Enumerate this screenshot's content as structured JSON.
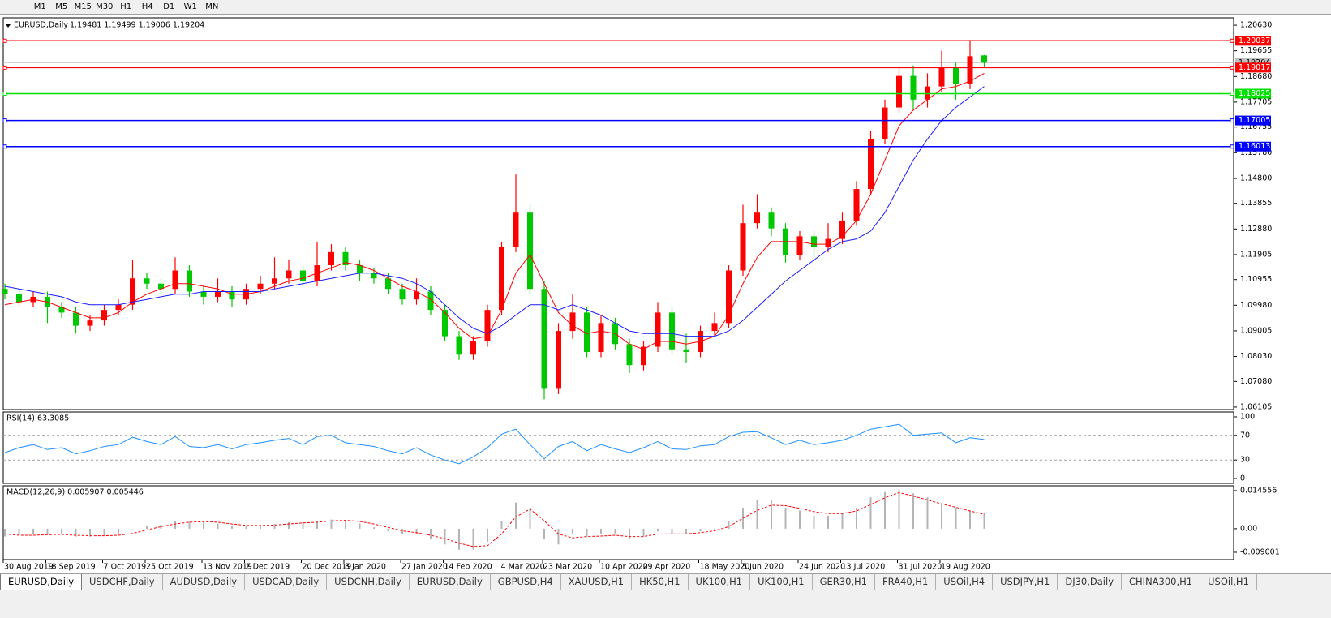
{
  "toolbar": {
    "timeframes": [
      "M1",
      "M5",
      "M15",
      "M30",
      "H1",
      "H4",
      "D1",
      "W1",
      "MN"
    ]
  },
  "chart_data": [
    {
      "type": "candlestick",
      "title": "EURUSD,Daily",
      "ohlc_label": "1.19481 1.19499 1.19006 1.19204",
      "categories": [
        "30 Aug 2019",
        null,
        null,
        "18 Sep 2019",
        null,
        null,
        null,
        "7 Oct 2019",
        null,
        null,
        "25 Oct 2019",
        null,
        null,
        null,
        "13 Nov 2019",
        null,
        null,
        "2 Dec 2019",
        null,
        null,
        null,
        "20 Dec 2019",
        null,
        null,
        "8 Jan 2020",
        null,
        null,
        null,
        "27 Jan 2020",
        null,
        null,
        "14 Feb 2020",
        null,
        null,
        null,
        "4 Mar 2020",
        null,
        null,
        "23 Mar 2020",
        null,
        null,
        null,
        "10 Apr 2020",
        null,
        null,
        "29 Apr 2020",
        null,
        null,
        null,
        "18 May 2020",
        null,
        null,
        "5 Jun 2020",
        null,
        null,
        null,
        "24 Jun 2020",
        null,
        null,
        "13 Jul 2020",
        null,
        null,
        null,
        "31 Jul 2020",
        null,
        null,
        "19 Aug 2020",
        null,
        null,
        null
      ],
      "open": [
        1.106,
        1.104,
        1.101,
        1.103,
        1.099,
        1.097,
        1.092,
        1.094,
        1.098,
        1.1,
        1.11,
        1.108,
        1.106,
        1.113,
        1.105,
        1.103,
        1.105,
        1.102,
        1.106,
        1.108,
        1.11,
        1.113,
        1.109,
        1.115,
        1.12,
        1.115,
        1.112,
        1.11,
        1.106,
        1.102,
        1.105,
        1.098,
        1.088,
        1.081,
        1.086,
        1.098,
        1.122,
        1.135,
        1.106,
        1.068,
        1.09,
        1.097,
        1.082,
        1.093,
        1.085,
        1.077,
        1.084,
        1.097,
        1.083,
        1.082,
        1.09,
        1.093,
        1.113,
        1.131,
        1.135,
        1.129,
        1.119,
        1.126,
        1.122,
        1.125,
        1.132,
        1.144,
        1.163,
        1.175,
        1.187,
        1.178,
        1.183,
        1.19,
        1.184,
        1.19481
      ],
      "high": [
        1.108,
        1.106,
        1.105,
        1.105,
        1.101,
        1.099,
        1.096,
        1.1,
        1.102,
        1.117,
        1.112,
        1.11,
        1.118,
        1.115,
        1.107,
        1.11,
        1.107,
        1.108,
        1.111,
        1.118,
        1.117,
        1.115,
        1.124,
        1.123,
        1.122,
        1.117,
        1.114,
        1.112,
        1.108,
        1.11,
        1.107,
        1.1,
        1.09,
        1.088,
        1.1,
        1.124,
        1.1495,
        1.138,
        1.109,
        1.093,
        1.104,
        1.099,
        1.096,
        1.095,
        1.087,
        1.086,
        1.101,
        1.099,
        1.089,
        1.092,
        1.097,
        1.115,
        1.138,
        1.142,
        1.137,
        1.131,
        1.128,
        1.128,
        1.131,
        1.135,
        1.147,
        1.166,
        1.178,
        1.19,
        1.191,
        1.188,
        1.1966,
        1.192,
        1.2004,
        1.19499
      ],
      "low": [
        1.102,
        1.099,
        1.099,
        1.093,
        1.095,
        1.089,
        1.09,
        1.092,
        1.096,
        1.098,
        1.106,
        1.104,
        1.104,
        1.103,
        1.1,
        1.101,
        1.099,
        1.1,
        1.104,
        1.106,
        1.108,
        1.107,
        1.107,
        1.113,
        1.113,
        1.109,
        1.108,
        1.104,
        1.1,
        1.1,
        1.096,
        1.086,
        1.079,
        1.079,
        1.084,
        1.096,
        1.12,
        1.104,
        1.064,
        1.066,
        1.087,
        1.08,
        1.08,
        1.083,
        1.074,
        1.075,
        1.082,
        1.081,
        1.078,
        1.08,
        1.088,
        1.091,
        1.111,
        1.129,
        1.126,
        1.116,
        1.117,
        1.118,
        1.12,
        1.123,
        1.13,
        1.142,
        1.161,
        1.173,
        1.174,
        1.175,
        1.181,
        1.178,
        1.182,
        1.19006
      ],
      "close": [
        1.104,
        1.101,
        1.103,
        1.099,
        1.097,
        1.092,
        1.094,
        1.098,
        1.1,
        1.11,
        1.108,
        1.106,
        1.113,
        1.105,
        1.103,
        1.105,
        1.102,
        1.106,
        1.108,
        1.11,
        1.113,
        1.109,
        1.115,
        1.12,
        1.115,
        1.112,
        1.11,
        1.106,
        1.102,
        1.105,
        1.098,
        1.088,
        1.081,
        1.086,
        1.098,
        1.122,
        1.135,
        1.106,
        1.068,
        1.09,
        1.097,
        1.082,
        1.093,
        1.085,
        1.077,
        1.084,
        1.097,
        1.083,
        1.082,
        1.09,
        1.093,
        1.113,
        1.131,
        1.135,
        1.129,
        1.119,
        1.126,
        1.122,
        1.125,
        1.132,
        1.144,
        1.163,
        1.175,
        1.187,
        1.178,
        1.183,
        1.19,
        1.184,
        1.1945,
        1.19204
      ],
      "up_color": "#ff0000",
      "down_color": "#00c800",
      "series": [
        {
          "color": "#ff0000",
          "values": [
            1.1,
            1.101,
            1.102,
            1.101,
            1.099,
            1.097,
            1.095,
            1.095,
            1.097,
            1.101,
            1.104,
            1.106,
            1.108,
            1.108,
            1.107,
            1.106,
            1.104,
            1.104,
            1.105,
            1.107,
            1.109,
            1.11,
            1.112,
            1.114,
            1.116,
            1.115,
            1.113,
            1.11,
            1.107,
            1.105,
            1.102,
            1.097,
            1.091,
            1.087,
            1.088,
            1.098,
            1.112,
            1.119,
            1.108,
            1.097,
            1.092,
            1.089,
            1.09,
            1.089,
            1.085,
            1.083,
            1.086,
            1.086,
            1.085,
            1.086,
            1.088,
            1.096,
            1.108,
            1.118,
            1.124,
            1.124,
            1.124,
            1.123,
            1.123,
            1.126,
            1.132,
            1.142,
            1.155,
            1.168,
            1.174,
            1.178,
            1.182,
            1.183,
            1.185,
            1.188
          ]
        },
        {
          "color": "#1c1cff",
          "values": [
            1.107,
            1.106,
            1.105,
            1.104,
            1.103,
            1.101,
            1.1,
            1.1,
            1.1,
            1.101,
            1.102,
            1.103,
            1.104,
            1.104,
            1.105,
            1.105,
            1.105,
            1.105,
            1.105,
            1.106,
            1.107,
            1.108,
            1.109,
            1.11,
            1.111,
            1.112,
            1.112,
            1.111,
            1.11,
            1.108,
            1.105,
            1.1,
            1.095,
            1.091,
            1.089,
            1.092,
            1.096,
            1.1,
            1.1,
            1.098,
            1.1,
            1.098,
            1.096,
            1.093,
            1.09,
            1.089,
            1.089,
            1.089,
            1.088,
            1.088,
            1.088,
            1.09,
            1.094,
            1.099,
            1.104,
            1.109,
            1.113,
            1.117,
            1.121,
            1.124,
            1.125,
            1.128,
            1.135,
            1.145,
            1.155,
            1.163,
            1.17,
            1.175,
            1.179,
            1.183
          ]
        }
      ],
      "levels": [
        {
          "value": 1.20037,
          "color": "#ff0000"
        },
        {
          "value": 1.19017,
          "color": "#ff0000"
        },
        {
          "value": 1.18025,
          "color": "#00e000"
        },
        {
          "value": 1.17005,
          "color": "#0000ff"
        },
        {
          "value": 1.16013,
          "color": "#0000ff"
        }
      ],
      "current_price": 1.19204,
      "ylim": [
        1.0601,
        1.2091
      ],
      "yticks": [
        {
          "value": 1.2063,
          "label": "1.20630"
        },
        1.19655,
        {
          "value": 1.1868,
          "label": "1.18680"
        },
        1.17705,
        1.16755,
        {
          "value": 1.1578,
          "label": "1.15780"
        },
        {
          "value": 1.148,
          "label": "1.14800"
        },
        1.13855,
        {
          "value": 1.1288,
          "label": "1.12880"
        },
        1.11905,
        1.10955,
        {
          "value": 1.0998,
          "label": "1.09980"
        },
        1.09005,
        {
          "value": 1.0803,
          "label": "1.08030"
        },
        {
          "value": 1.0708,
          "label": "1.07080"
        },
        1.06105
      ]
    },
    {
      "type": "line",
      "title": "RSI(14) 63.3085",
      "color": "#1e90ff",
      "values": [
        42,
        50,
        55,
        47,
        50,
        40,
        45,
        52,
        55,
        67,
        60,
        55,
        68,
        52,
        50,
        55,
        48,
        55,
        58,
        62,
        65,
        55,
        68,
        70,
        58,
        55,
        52,
        45,
        40,
        50,
        38,
        30,
        24,
        35,
        50,
        72,
        80,
        55,
        32,
        52,
        60,
        45,
        55,
        48,
        42,
        50,
        60,
        48,
        47,
        53,
        55,
        68,
        75,
        76,
        66,
        55,
        62,
        55,
        58,
        62,
        70,
        80,
        84,
        88,
        70,
        72,
        74,
        58,
        66,
        63.3085
      ],
      "levels": [
        70,
        30
      ],
      "ylim": [
        -7.9,
        107.9
      ],
      "yticks": [
        100,
        70,
        30,
        0
      ]
    },
    {
      "type": "macd",
      "title": "MACD(12,26,9) 0.005907 0.005446",
      "series": [
        {
          "type": "bar",
          "color": "#b4b4b4",
          "values": [
            -0.003,
            -0.0025,
            -0.002,
            -0.002,
            -0.0022,
            -0.003,
            -0.003,
            -0.0025,
            -0.002,
            0.0,
            0.001,
            0.0015,
            0.003,
            0.003,
            0.0025,
            0.002,
            0.001,
            0.001,
            0.0012,
            0.0018,
            0.0025,
            0.0025,
            0.003,
            0.0035,
            0.003,
            0.002,
            0.0005,
            -0.001,
            -0.002,
            -0.002,
            -0.004,
            -0.006,
            -0.008,
            -0.008,
            -0.005,
            0.003,
            0.01,
            0.008,
            -0.004,
            -0.006,
            -0.002,
            -0.003,
            -0.002,
            -0.002,
            -0.004,
            -0.003,
            -0.001,
            -0.002,
            -0.002,
            -0.001,
            0.0,
            0.003,
            0.008,
            0.011,
            0.011,
            0.008,
            0.007,
            0.005,
            0.005,
            0.006,
            0.008,
            0.012,
            0.014,
            0.015,
            0.0135,
            0.012,
            0.0095,
            0.008,
            0.007,
            0.005907
          ]
        },
        {
          "type": "line",
          "color": "#ff0000",
          "dashed": true,
          "values": [
            -0.002,
            -0.0025,
            -0.0025,
            -0.0023,
            -0.0022,
            -0.0025,
            -0.0027,
            -0.0027,
            -0.0025,
            -0.0018,
            -0.0005,
            0.0008,
            0.0018,
            0.0025,
            0.0027,
            0.0025,
            0.0018,
            0.0013,
            0.0012,
            0.0014,
            0.0018,
            0.0022,
            0.0025,
            0.003,
            0.0032,
            0.0028,
            0.0018,
            0.0005,
            -0.0008,
            -0.0015,
            -0.0025,
            -0.0038,
            -0.0055,
            -0.0068,
            -0.0065,
            -0.002,
            0.0045,
            0.0075,
            0.003,
            -0.002,
            -0.0035,
            -0.003,
            -0.0028,
            -0.0025,
            -0.003,
            -0.003,
            -0.002,
            -0.002,
            -0.002,
            -0.0015,
            -0.0008,
            0.0008,
            0.004,
            0.007,
            0.009,
            0.0088,
            0.0078,
            0.0065,
            0.0058,
            0.0058,
            0.0068,
            0.0092,
            0.0118,
            0.0138,
            0.0125,
            0.011,
            0.0095,
            0.0082,
            0.0068,
            0.005446
          ]
        }
      ],
      "ylim": [
        -0.0118,
        0.0164
      ],
      "yticks": [
        0.014556,
        {
          "value": 0,
          "label": "0.00"
        },
        -0.009001
      ]
    }
  ],
  "tabs": [
    "EURUSD,Daily",
    "USDCHF,Daily",
    "AUDUSD,Daily",
    "USDCAD,Daily",
    "USDCNH,Daily",
    "EURUSD,Daily",
    "GBPUSD,H4",
    "XAUUSD,H1",
    "HK50,H1",
    "UK100,H1",
    "UK100,H1",
    "GER30,H1",
    "FRA40,H1",
    "USOil,H4",
    "USDJPY,H1",
    "DJ30,Daily",
    "CHINA300,H1",
    "USOil,H1"
  ]
}
